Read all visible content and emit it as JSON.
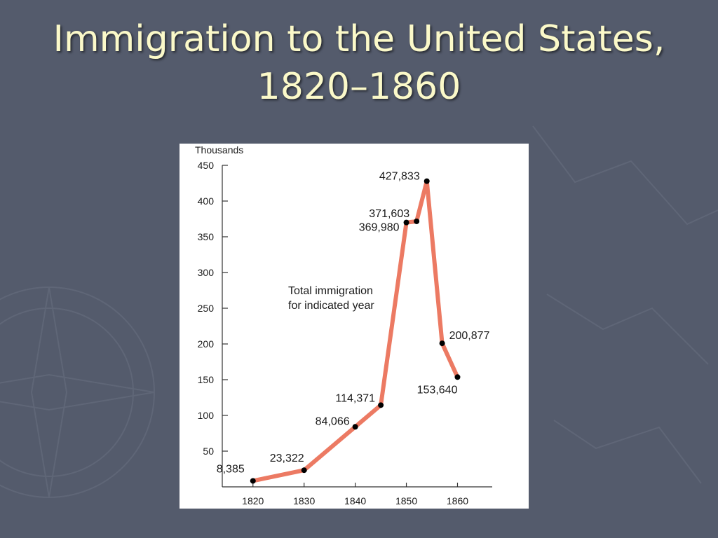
{
  "slide": {
    "title_line1": "Immigration to the United States,",
    "title_line2": "1820–1860"
  },
  "colors": {
    "background": "#545b6c",
    "title_text": "#fbf9c9",
    "line": "#ec7a63",
    "marker": "#000000"
  },
  "chart_data": {
    "type": "line",
    "title": "",
    "ylabel": "Thousands",
    "xlabel": "",
    "annotation": [
      "Total immigration",
      "for indicated year"
    ],
    "xlim": [
      1814,
      1872
    ],
    "ylim": [
      0,
      450
    ],
    "x_ticks": [
      1820,
      1830,
      1840,
      1850,
      1860
    ],
    "y_ticks": [
      50,
      100,
      150,
      200,
      250,
      300,
      350,
      400,
      450
    ],
    "series": [
      {
        "points": [
          {
            "x": 1820,
            "y": 8.385,
            "label": "8,385"
          },
          {
            "x": 1830,
            "y": 23.322,
            "label": "23,322"
          },
          {
            "x": 1840,
            "y": 84.066,
            "label": "84,066"
          },
          {
            "x": 1845,
            "y": 114.371,
            "label": "114,371"
          },
          {
            "x": 1850,
            "y": 369.98,
            "label": "369,980"
          },
          {
            "x": 1852,
            "y": 371.603,
            "label": "371,603"
          },
          {
            "x": 1854,
            "y": 427.833,
            "label": "427,833"
          },
          {
            "x": 1857,
            "y": 200.877,
            "label": "200,877"
          },
          {
            "x": 1860,
            "y": 153.64,
            "label": "153,640"
          }
        ]
      }
    ]
  }
}
